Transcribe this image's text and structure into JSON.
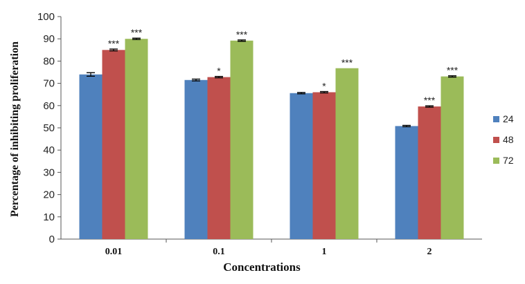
{
  "chart_data": {
    "type": "bar",
    "title": "",
    "xlabel": "Concentrations",
    "ylabel": "Percentage of inhibiting proliferation",
    "ylim": [
      0,
      100
    ],
    "yticks": [
      0,
      10,
      20,
      30,
      40,
      50,
      60,
      70,
      80,
      90,
      100
    ],
    "categories": [
      "0.01",
      "0.1",
      "1",
      "2"
    ],
    "grid": false,
    "legend_position": "right",
    "series": [
      {
        "name": "24",
        "color": "#4F81BD",
        "values": [
          74.0,
          71.5,
          65.6,
          50.8
        ],
        "errors": [
          0.8,
          0.4,
          0.3,
          0.3
        ],
        "significance": [
          "",
          "",
          "",
          ""
        ]
      },
      {
        "name": "48",
        "color": "#C0504D",
        "values": [
          85.0,
          72.8,
          66.0,
          59.6
        ],
        "errors": [
          0.4,
          0.3,
          0.3,
          0.3
        ],
        "significance": [
          "***",
          "*",
          "*",
          "***"
        ]
      },
      {
        "name": "72",
        "color": "#9BBB59",
        "values": [
          90.0,
          89.2,
          76.8,
          73.1
        ],
        "errors": [
          0.3,
          0.3,
          0.0,
          0.3
        ],
        "significance": [
          "***",
          "***",
          "***",
          "***"
        ]
      }
    ]
  }
}
